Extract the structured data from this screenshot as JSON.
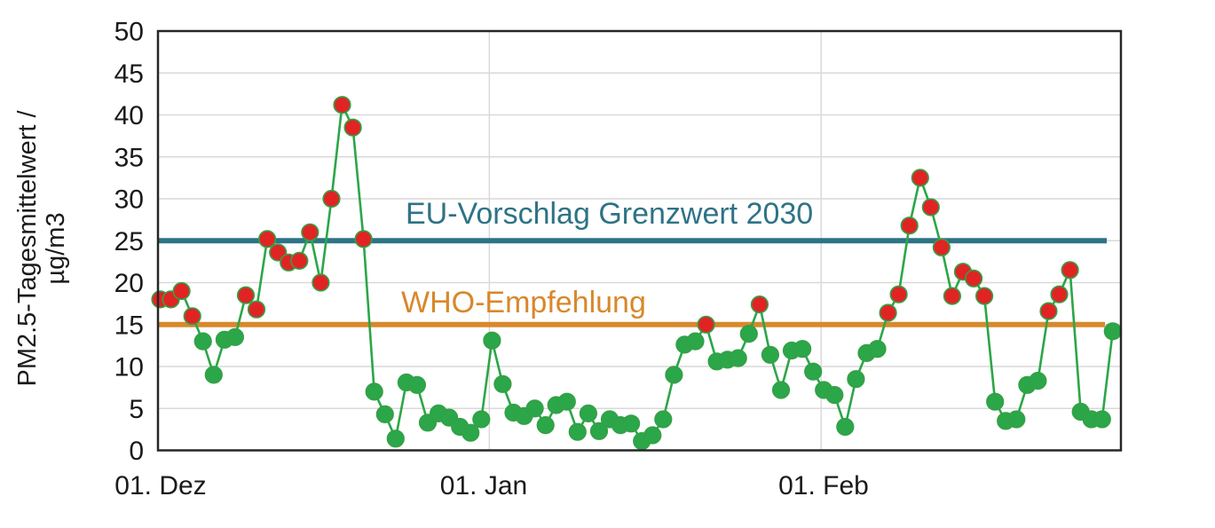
{
  "chart_data": {
    "type": "line",
    "title": "",
    "ylabel_line1": "PM2.5-Tagesmittelwert /",
    "ylabel_line2": "µg/m3",
    "y_axis": {
      "min": 0,
      "max": 50,
      "step": 5
    },
    "x_ticks": [
      {
        "index": 0,
        "label": "01. Dez"
      },
      {
        "index": 31,
        "label": "01. Jan"
      },
      {
        "index": 62,
        "label": "01. Feb"
      }
    ],
    "grid": "on",
    "legend": "none",
    "series": [
      {
        "name": "PM2.5-Tagesmittelwert",
        "x_unit": "day (daily values from 01. Dez to 28. Feb)",
        "values": [
          18,
          18,
          19,
          16,
          13,
          9,
          13.2,
          13.5,
          18.5,
          16.8,
          25.2,
          23.6,
          22.4,
          22.6,
          26,
          20,
          30,
          41.2,
          38.5,
          25.2,
          7,
          4.3,
          1.4,
          8.1,
          7.8,
          3.3,
          4.4,
          3.9,
          2.8,
          2.1,
          3.7,
          13.1,
          7.9,
          4.5,
          4.1,
          5,
          3,
          5.4,
          5.8,
          2.2,
          4.4,
          2.3,
          3.7,
          3,
          3.2,
          1.1,
          1.8,
          3.7,
          9,
          12.6,
          13,
          15,
          10.6,
          10.8,
          11,
          13.9,
          17.4,
          11.4,
          7.2,
          11.9,
          12.1,
          9.4,
          7.2,
          6.6,
          2.8,
          8.5,
          11.6,
          12.1,
          16.4,
          18.6,
          26.8,
          32.5,
          29,
          24.2,
          18.4,
          21.3,
          20.5,
          18.4,
          5.8,
          3.5,
          3.7,
          7.8,
          8.3,
          16.6,
          18.6,
          21.5,
          4.6,
          3.7,
          3.7,
          14.2
        ]
      }
    ],
    "marker_rule": {
      "description": "marker red if value >= threshold, else green",
      "threshold": 15,
      "red_color": "#e02424",
      "green_color": "#2ba648"
    },
    "reference_lines": [
      {
        "label": "EU-Vorschlag Grenzwert 2030",
        "value": 25,
        "color": "#2e7386"
      },
      {
        "label": "WHO-Empfehlung",
        "value": 15,
        "color": "#d8882b"
      }
    ],
    "line_color": "#2ba648",
    "grid_color": "#d9d9d9",
    "frame_color": "#262626"
  }
}
